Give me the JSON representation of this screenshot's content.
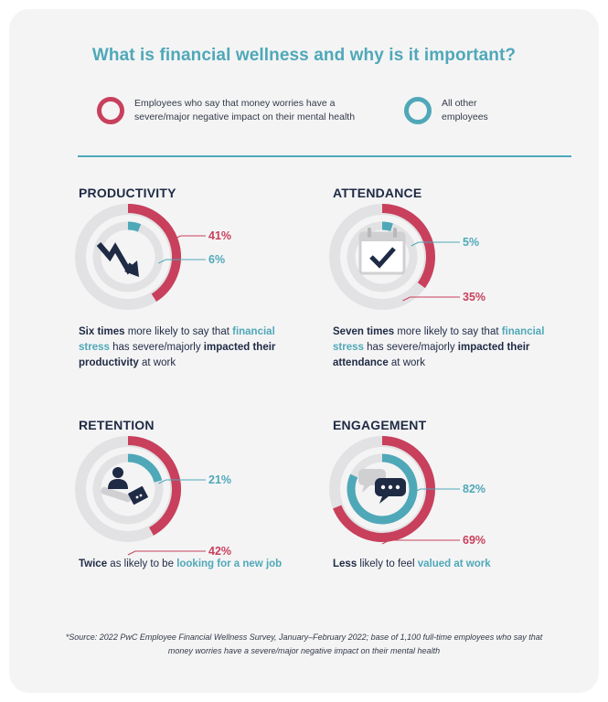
{
  "title": "What is financial wellness and why is it important?",
  "legend": {
    "impacted_label": "Employees who say that money worries have a severe/major negative impact on their mental health",
    "other_label": "All other employees"
  },
  "colors": {
    "impacted": "#c8405c",
    "other": "#4fa8b8",
    "track": "#e2e2e4",
    "icon": "#1f2a44"
  },
  "chart_data": [
    {
      "type": "pie",
      "title": "PRODUCTIVITY",
      "series": [
        {
          "name": "Employees who say that money worries have a severe/major negative impact on their mental health",
          "value": 41,
          "label": "41%"
        },
        {
          "name": "All other employees",
          "value": 6,
          "label": "6%"
        }
      ],
      "icon": "trend-down-arrow-icon",
      "caption": [
        {
          "text": "Six times",
          "style": "b"
        },
        {
          "text": " more likely to say that ",
          "style": ""
        },
        {
          "text": "financial stress",
          "style": "t"
        },
        {
          "text": " has severe/majorly ",
          "style": ""
        },
        {
          "text": "impacted their productivity",
          "style": "b"
        },
        {
          "text": " at work",
          "style": ""
        }
      ]
    },
    {
      "type": "pie",
      "title": "ATTENDANCE",
      "series": [
        {
          "name": "All other employees",
          "value": 5,
          "label": "5%"
        },
        {
          "name": "Employees who say that money worries have a severe/major negative impact on their mental health",
          "value": 35,
          "label": "35%"
        }
      ],
      "icon": "calendar-check-icon",
      "caption": [
        {
          "text": "Seven times",
          "style": "b"
        },
        {
          "text": " more likely to say that ",
          "style": ""
        },
        {
          "text": "financial stress",
          "style": "t"
        },
        {
          "text": " has severe/majorly ",
          "style": ""
        },
        {
          "text": "impacted their attendance",
          "style": "b"
        },
        {
          "text": " at work",
          "style": ""
        }
      ]
    },
    {
      "type": "pie",
      "title": "RETENTION",
      "series": [
        {
          "name": "All other employees",
          "value": 21,
          "label": "21%"
        },
        {
          "name": "Employees who say that money worries have a severe/major negative impact on their mental health",
          "value": 42,
          "label": "42%"
        }
      ],
      "icon": "job-search-icon",
      "caption": [
        {
          "text": "Twice",
          "style": "b"
        },
        {
          "text": " as likely to be ",
          "style": ""
        },
        {
          "text": "looking for a new job",
          "style": "t"
        }
      ]
    },
    {
      "type": "pie",
      "title": "ENGAGEMENT",
      "series": [
        {
          "name": "All other employees",
          "value": 82,
          "label": "82%"
        },
        {
          "name": "Employees who say that money worries have a severe/major negative impact on their mental health",
          "value": 69,
          "label": "69%"
        }
      ],
      "icon": "chat-bubbles-icon",
      "caption": [
        {
          "text": "Less",
          "style": "b"
        },
        {
          "text": " likely to feel ",
          "style": ""
        },
        {
          "text": "valued at work",
          "style": "t"
        }
      ]
    }
  ],
  "source": "*Source: 2022 PwC Employee Financial Wellness Survey, January–February 2022; base of 1,100 full-time employees who say that money worries have a severe/major negative impact on their mental health"
}
